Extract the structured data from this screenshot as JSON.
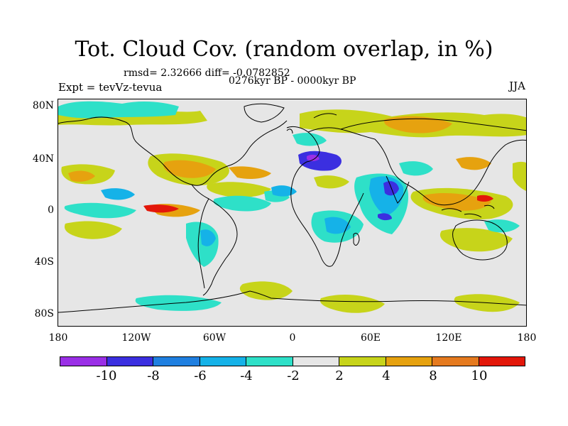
{
  "title": "Tot. Cloud Cov. (random overlap, in %)",
  "stats": "rmsd= 2.32666 diff= -0.0782852",
  "period": "0276kyr BP - 0000kyr BP",
  "experiment": "Expt = tevVz-tevua",
  "season": "JJA",
  "y_ticks": [
    "80N",
    "40N",
    "0",
    "40S",
    "80S"
  ],
  "x_ticks": [
    "180",
    "120W",
    "60W",
    "0",
    "60E",
    "120E",
    "180"
  ],
  "colorbar": {
    "colors": [
      "#9a2fe6",
      "#3b2fe0",
      "#1f7fe0",
      "#15b2e8",
      "#2ee0c8",
      "#e6e6e6",
      "#c7d41a",
      "#e6a20f",
      "#e57a1f",
      "#e3170a"
    ],
    "labels": [
      "-10",
      "-8",
      "-6",
      "-4",
      "-2",
      "2",
      "4",
      "8",
      "10"
    ]
  },
  "colors": {
    "neutral": "#e6e6e6",
    "negative_light": "#2ee0c8",
    "negative_mid": "#15b2e8",
    "negative_strong": "#1f7fe0",
    "negative_max": "#3b2fe0",
    "positive_light": "#c7d41a",
    "positive_mid": "#e6a20f",
    "positive_strong": "#e57a1f",
    "positive_max": "#e3170a"
  }
}
